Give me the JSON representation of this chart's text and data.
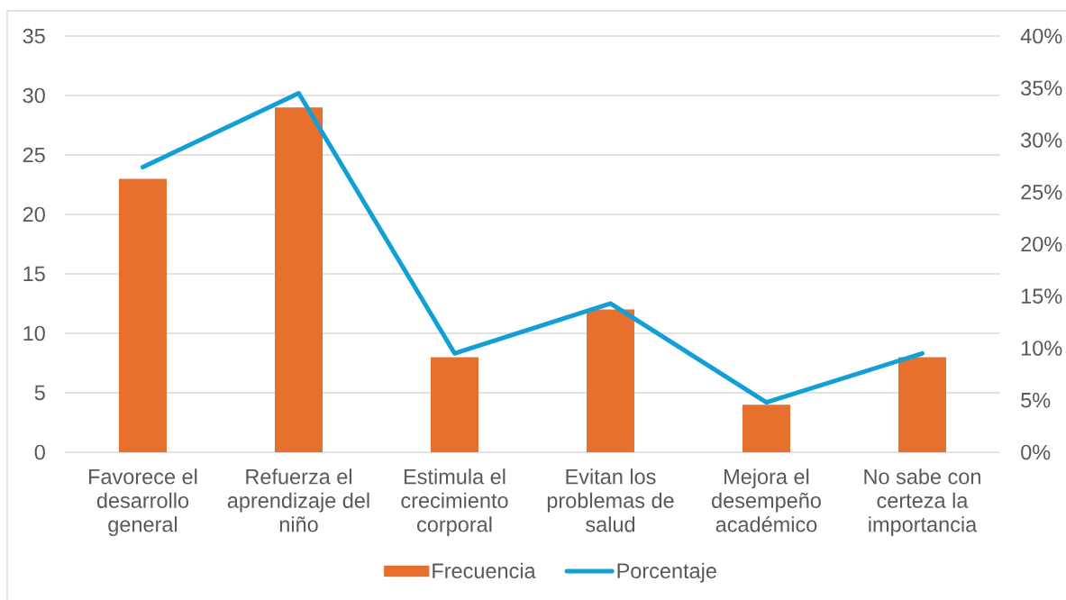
{
  "chart_data": {
    "type": "bar",
    "categories": [
      "Favorece el desarrollo general",
      "Refuerza el aprendizaje del niño",
      "Estimula el crecimiento corporal",
      "Evitan los problemas de salud",
      "Mejora el desempeño académico",
      "No sabe con certeza la importancia"
    ],
    "series": [
      {
        "name": "Frecuencia",
        "color": "#e8702f",
        "values": [
          23,
          29,
          8,
          12,
          4,
          8
        ]
      },
      {
        "name": "Porcentaje",
        "type": "line",
        "axis": "y2",
        "color": "#129fd6",
        "values": [
          27.4,
          34.5,
          9.5,
          14.3,
          4.8,
          9.5
        ]
      }
    ],
    "ylim": [
      0,
      35
    ],
    "yticks": [
      0,
      5,
      10,
      15,
      20,
      25,
      30,
      35
    ],
    "y2lim": [
      0,
      40
    ],
    "y2ticks": [
      {
        "value": 0,
        "label": "0%"
      },
      {
        "value": 5,
        "label": "5%"
      },
      {
        "value": 10,
        "label": "10%"
      },
      {
        "value": 15,
        "label": "15%"
      },
      {
        "value": 20,
        "label": "20%"
      },
      {
        "value": 25,
        "label": "25%"
      },
      {
        "value": 30,
        "label": "30%"
      },
      {
        "value": 35,
        "label": "35%"
      },
      {
        "value": 40,
        "label": "40%"
      }
    ],
    "grid": "y",
    "legend": "bottom"
  }
}
